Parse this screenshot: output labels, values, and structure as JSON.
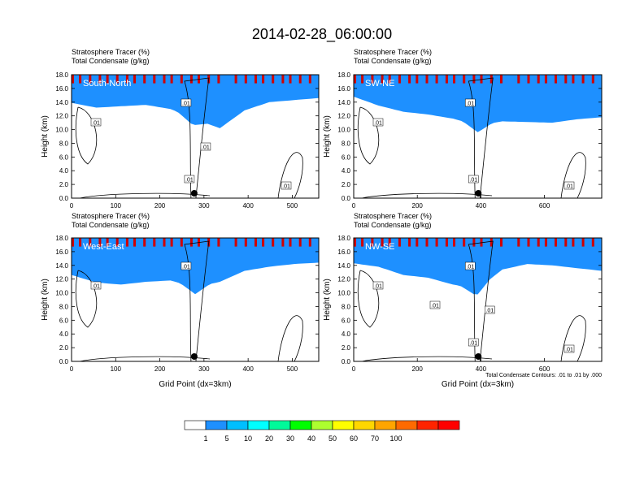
{
  "title": "2014-02-28_06:00:00",
  "colorbar": {
    "colors": [
      "#ffffff",
      "#1e90ff",
      "#00bfff",
      "#00ffff",
      "#00fa9a",
      "#00ff00",
      "#adff2f",
      "#ffff00",
      "#ffd700",
      "#ffa500",
      "#ff6a00",
      "#ff2400",
      "#ff0000"
    ],
    "ticks": [
      "1",
      "5",
      "10",
      "20",
      "30",
      "40",
      "50",
      "60",
      "70",
      "100"
    ]
  },
  "footnote": "Total Condensate Contours: .01 to .01 by .000",
  "chart_data": [
    {
      "type": "heatmap",
      "panel_label": "South-North",
      "title_lines": [
        "Stratosphere Tracer   (%)",
        "Total Condensate   (g/kg)"
      ],
      "ylabel": "Height (km)",
      "xlabel": "",
      "xlim": [
        0,
        560
      ],
      "ylim": [
        0,
        18
      ],
      "xticks": [
        "0",
        "100",
        "200",
        "300",
        "400",
        "500"
      ],
      "yticks": [
        "0.0",
        "2.0",
        "4.0",
        "6.0",
        "8.0",
        "10.0",
        "12.0",
        "14.0",
        "16.0",
        "18.0"
      ],
      "marker_x": 278,
      "contour_labels": [
        ".01",
        ".01",
        ".01",
        ".01",
        ".01"
      ]
    },
    {
      "type": "heatmap",
      "panel_label": "SW-NE",
      "title_lines": [
        "Stratosphere Tracer   (%)",
        "Total Condensate   (g/kg)"
      ],
      "ylabel": "Height (km)",
      "xlabel": "",
      "xlim": [
        0,
        780
      ],
      "ylim": [
        0,
        18
      ],
      "xticks": [
        "0",
        "200",
        "400",
        "600"
      ],
      "yticks": [
        "0.0",
        "2.0",
        "4.0",
        "6.0",
        "8.0",
        "10.0",
        "12.0",
        "14.0",
        "16.0",
        "18.0"
      ],
      "marker_x": 392,
      "contour_labels": [
        ".01",
        ".01",
        ".01",
        ".01"
      ]
    },
    {
      "type": "heatmap",
      "panel_label": "West-East",
      "title_lines": [
        "Stratosphere Tracer   (%)",
        "Total Condensate   (g/kg)"
      ],
      "ylabel": "Height (km)",
      "xlabel": "Grid Point (dx=3km)",
      "xlim": [
        0,
        560
      ],
      "ylim": [
        0,
        18
      ],
      "xticks": [
        "0",
        "100",
        "200",
        "300",
        "400",
        "500"
      ],
      "yticks": [
        "0.0",
        "2.0",
        "4.0",
        "6.0",
        "8.0",
        "10.0",
        "12.0",
        "14.0",
        "16.0",
        "18.0"
      ],
      "marker_x": 278,
      "contour_labels": [
        ".01",
        ".01"
      ]
    },
    {
      "type": "heatmap",
      "panel_label": "NW-SE",
      "title_lines": [
        "Stratosphere Tracer   (%)",
        "Total Condensate   (g/kg)"
      ],
      "ylabel": "Height (km)",
      "xlabel": "Grid Point (dx=3km)",
      "xlim": [
        0,
        780
      ],
      "ylim": [
        0,
        18
      ],
      "xticks": [
        "0",
        "200",
        "400",
        "600"
      ],
      "yticks": [
        "0.0",
        "2.0",
        "4.0",
        "6.0",
        "8.0",
        "10.0",
        "12.0",
        "14.0",
        "16.0",
        "18.0"
      ],
      "marker_x": 392,
      "contour_labels": [
        ".01",
        ".01",
        ".01",
        ".01",
        ".01",
        ".01"
      ]
    }
  ]
}
